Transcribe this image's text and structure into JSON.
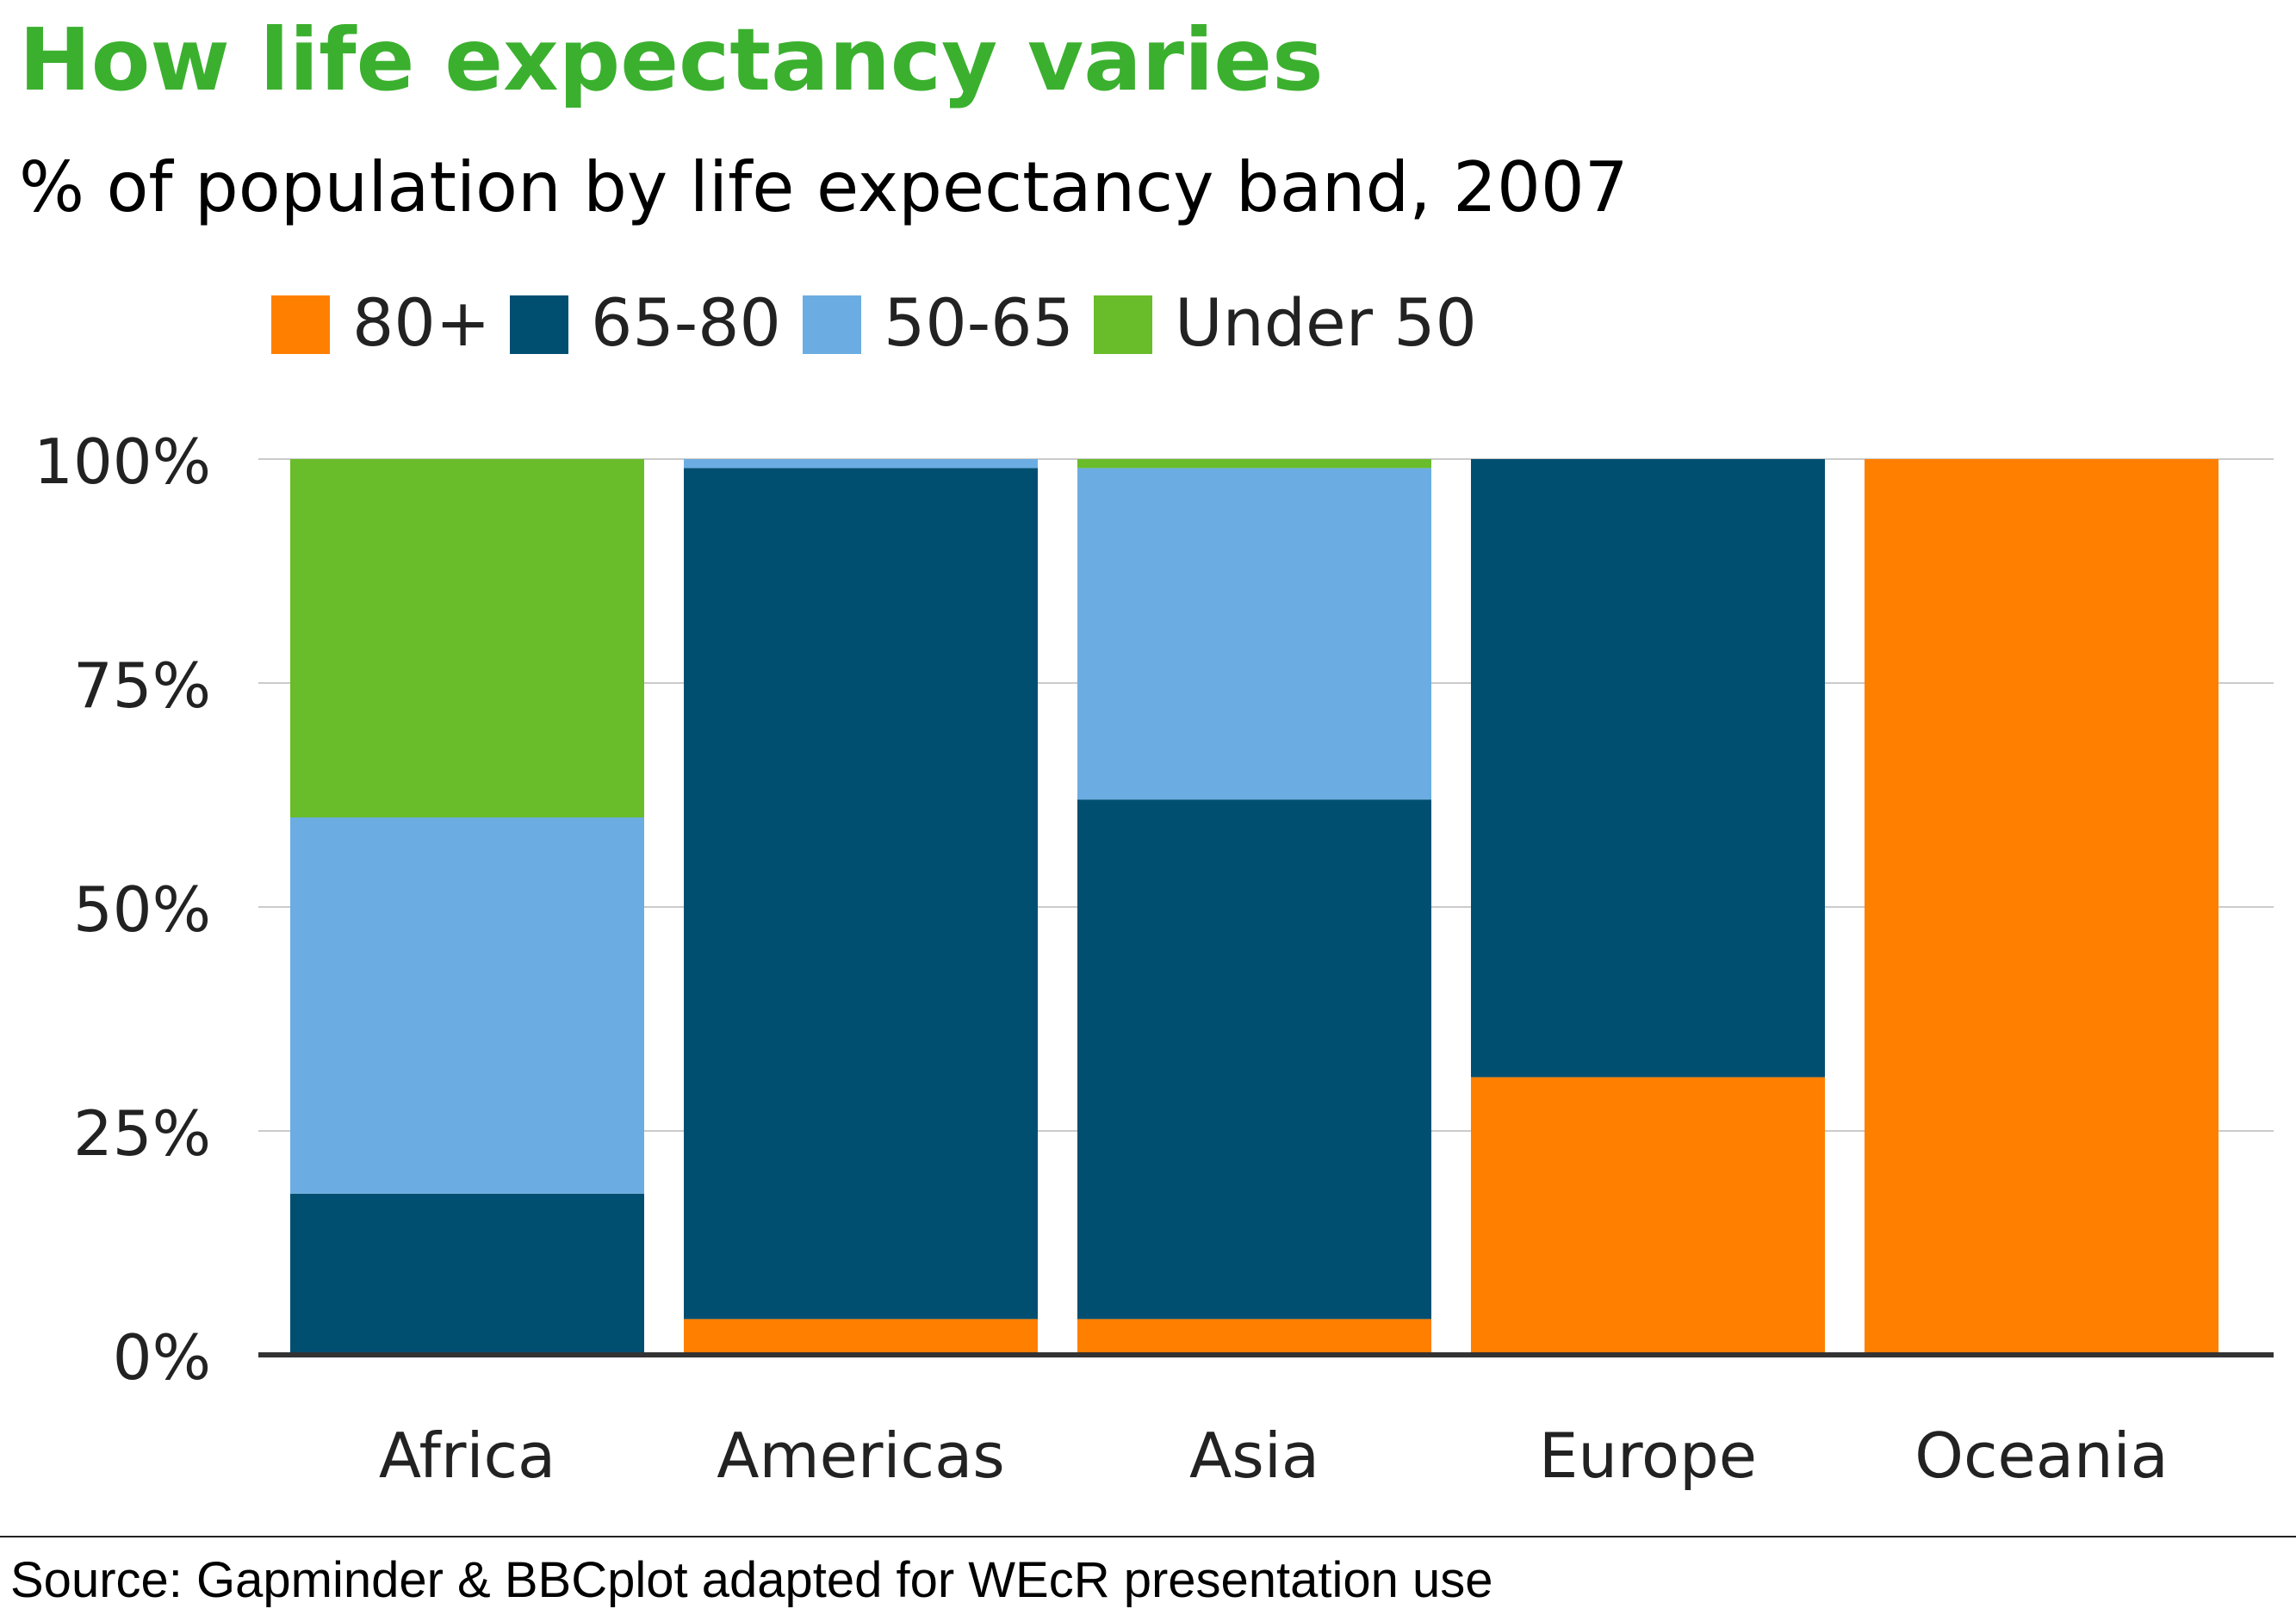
{
  "title": "How life expectancy varies",
  "subtitle": "% of population by life expectancy band, 2007",
  "source": "Source: Gapminder & BBCplot adapted for WEcR presentation use",
  "colors": {
    "title": "#3BB02F",
    "gridline": "#CBCBCB",
    "baseline": "#333333",
    "text": "#222222"
  },
  "chart_data": {
    "type": "bar",
    "stacked": true,
    "percent": true,
    "categories": [
      "Africa",
      "Americas",
      "Asia",
      "Europe",
      "Oceania"
    ],
    "series": [
      {
        "name": "80+",
        "color": "#FF7F00",
        "values": [
          0,
          4,
          4,
          31,
          100
        ]
      },
      {
        "name": "65-80",
        "color": "#004F71",
        "values": [
          18,
          95,
          58,
          69,
          0
        ]
      },
      {
        "name": "50-65",
        "color": "#6BADE2",
        "values": [
          42,
          1,
          37,
          0,
          0
        ]
      },
      {
        "name": "Under 50",
        "color": "#69BC2A",
        "values": [
          40,
          0,
          1,
          0,
          0
        ]
      }
    ],
    "legend_position": "top-left",
    "ylim": [
      0,
      100
    ],
    "yticks": [
      0,
      25,
      50,
      75,
      100
    ],
    "ytick_labels": [
      "0%",
      "25%",
      "50%",
      "75%",
      "100%"
    ],
    "grid": true,
    "xlabel": "",
    "ylabel": ""
  }
}
